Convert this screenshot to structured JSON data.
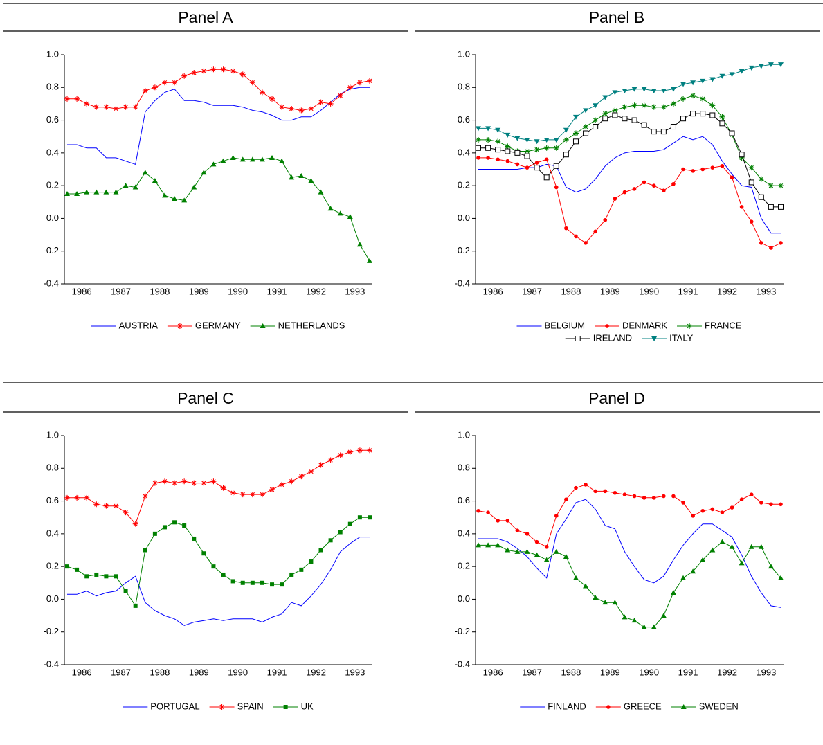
{
  "chart_data": [
    {
      "type": "line",
      "title": "Panel A",
      "legend": "bottom",
      "categories": [
        null,
        "1986",
        null,
        null,
        null,
        "1987",
        null,
        null,
        null,
        "1988",
        null,
        null,
        null,
        "1989",
        null,
        null,
        null,
        "1990",
        null,
        null,
        null,
        "1991",
        null,
        null,
        null,
        "1992",
        null,
        null,
        null,
        "1993",
        null,
        null
      ],
      "ylim": [
        -0.4,
        1.0
      ],
      "yticks": [
        -0.4,
        -0.2,
        {
          "value": 0,
          "label": "0.0"
        },
        0.2,
        0.4,
        0.6,
        0.8,
        {
          "value": 1,
          "label": "1.0"
        }
      ],
      "series": [
        {
          "name": "AUSTRIA",
          "color": "#0000ff",
          "marker": "none",
          "values": [
            0.45,
            0.45,
            0.43,
            0.43,
            0.37,
            0.37,
            0.35,
            0.33,
            0.65,
            0.72,
            0.77,
            0.79,
            0.72,
            0.72,
            0.71,
            0.69,
            0.69,
            0.69,
            0.68,
            0.66,
            0.65,
            0.63,
            0.6,
            0.6,
            0.62,
            0.62,
            0.66,
            0.71,
            0.76,
            0.79,
            0.8,
            0.8
          ]
        },
        {
          "name": "GERMANY",
          "color": "#ff0000",
          "marker": "star",
          "values": [
            0.73,
            0.73,
            0.7,
            0.68,
            0.68,
            0.67,
            0.68,
            0.68,
            0.78,
            0.8,
            0.83,
            0.83,
            0.87,
            0.89,
            0.9,
            0.91,
            0.91,
            0.9,
            0.88,
            0.83,
            0.77,
            0.73,
            0.68,
            0.67,
            0.66,
            0.67,
            0.71,
            0.7,
            0.75,
            0.8,
            0.83,
            0.84
          ]
        },
        {
          "name": "NETHERLANDS",
          "color": "#008000",
          "marker": "triangle",
          "values": [
            0.15,
            0.15,
            0.16,
            0.16,
            0.16,
            0.16,
            0.2,
            0.19,
            0.28,
            0.23,
            0.14,
            0.12,
            0.11,
            0.19,
            0.28,
            0.33,
            0.35,
            0.37,
            0.36,
            0.36,
            0.36,
            0.37,
            0.35,
            0.25,
            0.26,
            0.23,
            0.16,
            0.06,
            0.03,
            0.01,
            -0.16,
            -0.26
          ]
        }
      ]
    },
    {
      "type": "line",
      "title": "Panel B",
      "legend": "bottom",
      "categories": [
        null,
        "1986",
        null,
        null,
        null,
        "1987",
        null,
        null,
        null,
        "1988",
        null,
        null,
        null,
        "1989",
        null,
        null,
        null,
        "1990",
        null,
        null,
        null,
        "1991",
        null,
        null,
        null,
        "1992",
        null,
        null,
        null,
        "1993",
        null,
        null
      ],
      "ylim": [
        -0.4,
        1.0
      ],
      "yticks": [
        -0.4,
        -0.2,
        {
          "value": 0,
          "label": "0.0"
        },
        0.2,
        0.4,
        0.6,
        0.8,
        {
          "value": 1,
          "label": "1.0"
        }
      ],
      "series": [
        {
          "name": "BELGIUM",
          "color": "#0000ff",
          "marker": "none",
          "values": [
            0.3,
            0.3,
            0.3,
            0.3,
            0.3,
            0.31,
            0.31,
            0.33,
            0.32,
            0.19,
            0.16,
            0.18,
            0.24,
            0.32,
            0.37,
            0.4,
            0.41,
            0.41,
            0.41,
            0.42,
            0.46,
            0.5,
            0.48,
            0.5,
            0.45,
            0.35,
            0.27,
            0.2,
            0.19,
            0.0,
            -0.09,
            -0.09
          ]
        },
        {
          "name": "DENMARK",
          "color": "#ff0000",
          "marker": "dot",
          "values": [
            0.37,
            0.37,
            0.36,
            0.35,
            0.33,
            0.31,
            0.34,
            0.36,
            0.19,
            -0.06,
            -0.11,
            -0.15,
            -0.08,
            -0.01,
            0.12,
            0.16,
            0.18,
            0.22,
            0.2,
            0.17,
            0.21,
            0.3,
            0.29,
            0.3,
            0.31,
            0.32,
            0.25,
            0.07,
            -0.02,
            -0.15,
            -0.18,
            -0.15
          ]
        },
        {
          "name": "FRANCE",
          "color": "#008000",
          "marker": "star",
          "values": [
            0.48,
            0.48,
            0.47,
            0.44,
            0.41,
            0.41,
            0.42,
            0.43,
            0.43,
            0.48,
            0.52,
            0.56,
            0.6,
            0.64,
            0.66,
            0.68,
            0.69,
            0.69,
            0.68,
            0.68,
            0.7,
            0.73,
            0.75,
            0.73,
            0.69,
            0.62,
            0.51,
            0.37,
            0.31,
            0.24,
            0.2,
            0.2
          ]
        },
        {
          "name": "IRELAND",
          "color": "#000000",
          "marker": "opensquare",
          "values": [
            0.43,
            0.43,
            0.42,
            0.41,
            0.4,
            0.38,
            0.31,
            0.25,
            0.32,
            0.39,
            0.47,
            0.52,
            0.56,
            0.61,
            0.63,
            0.61,
            0.6,
            0.57,
            0.53,
            0.53,
            0.56,
            0.61,
            0.64,
            0.64,
            0.63,
            0.58,
            0.52,
            0.39,
            0.22,
            0.13,
            0.07,
            0.07
          ]
        },
        {
          "name": "ITALY",
          "color": "#008080",
          "marker": "invtriangle",
          "values": [
            0.55,
            0.55,
            0.54,
            0.51,
            0.49,
            0.48,
            0.47,
            0.48,
            0.48,
            0.54,
            0.62,
            0.66,
            0.69,
            0.74,
            0.77,
            0.78,
            0.79,
            0.79,
            0.78,
            0.78,
            0.79,
            0.82,
            0.83,
            0.84,
            0.85,
            0.87,
            0.88,
            0.9,
            0.92,
            0.93,
            0.94,
            0.94
          ]
        }
      ]
    },
    {
      "type": "line",
      "title": "Panel C",
      "legend": "bottom",
      "categories": [
        null,
        "1986",
        null,
        null,
        null,
        "1987",
        null,
        null,
        null,
        "1988",
        null,
        null,
        null,
        "1989",
        null,
        null,
        null,
        "1990",
        null,
        null,
        null,
        "1991",
        null,
        null,
        null,
        "1992",
        null,
        null,
        null,
        "1993",
        null,
        null
      ],
      "ylim": [
        -0.4,
        1.0
      ],
      "yticks": [
        -0.4,
        -0.2,
        {
          "value": 0,
          "label": "0.0"
        },
        0.2,
        0.4,
        0.6,
        0.8,
        {
          "value": 1,
          "label": "1.0"
        }
      ],
      "series": [
        {
          "name": "PORTUGAL",
          "color": "#0000ff",
          "marker": "none",
          "values": [
            0.03,
            0.03,
            0.05,
            0.02,
            0.04,
            0.05,
            0.1,
            0.14,
            -0.02,
            -0.07,
            -0.1,
            -0.12,
            -0.16,
            -0.14,
            -0.13,
            -0.12,
            -0.13,
            -0.12,
            -0.12,
            -0.12,
            -0.14,
            -0.11,
            -0.09,
            -0.02,
            -0.04,
            0.02,
            0.09,
            0.18,
            0.29,
            0.34,
            0.38,
            0.38
          ]
        },
        {
          "name": "SPAIN",
          "color": "#ff0000",
          "marker": "star",
          "values": [
            0.62,
            0.62,
            0.62,
            0.58,
            0.57,
            0.57,
            0.53,
            0.46,
            0.63,
            0.71,
            0.72,
            0.71,
            0.72,
            0.71,
            0.71,
            0.72,
            0.68,
            0.65,
            0.64,
            0.64,
            0.64,
            0.67,
            0.7,
            0.72,
            0.75,
            0.78,
            0.82,
            0.85,
            0.88,
            0.9,
            0.91,
            0.91
          ]
        },
        {
          "name": "UK",
          "color": "#008000",
          "marker": "square",
          "values": [
            0.2,
            0.18,
            0.14,
            0.15,
            0.14,
            0.14,
            0.05,
            -0.04,
            0.3,
            0.4,
            0.44,
            0.47,
            0.45,
            0.37,
            0.28,
            0.2,
            0.15,
            0.11,
            0.1,
            0.1,
            0.1,
            0.09,
            0.09,
            0.15,
            0.18,
            0.23,
            0.3,
            0.36,
            0.41,
            0.46,
            0.5,
            0.5
          ]
        }
      ]
    },
    {
      "type": "line",
      "title": "Panel D",
      "legend": "bottom",
      "categories": [
        null,
        "1986",
        null,
        null,
        null,
        "1987",
        null,
        null,
        null,
        "1988",
        null,
        null,
        null,
        "1989",
        null,
        null,
        null,
        "1990",
        null,
        null,
        null,
        "1991",
        null,
        null,
        null,
        "1992",
        null,
        null,
        null,
        "1993",
        null,
        null
      ],
      "ylim": [
        -0.4,
        1.0
      ],
      "yticks": [
        -0.4,
        -0.2,
        {
          "value": 0,
          "label": "0.0"
        },
        0.2,
        0.4,
        0.6,
        0.8,
        {
          "value": 1,
          "label": "1.0"
        }
      ],
      "series": [
        {
          "name": "FINLAND",
          "color": "#0000ff",
          "marker": "none",
          "values": [
            0.37,
            0.37,
            0.37,
            0.35,
            0.31,
            0.26,
            0.19,
            0.13,
            0.4,
            0.49,
            0.59,
            0.61,
            0.55,
            0.45,
            0.43,
            0.29,
            0.2,
            0.12,
            0.1,
            0.14,
            0.24,
            0.33,
            0.4,
            0.46,
            0.46,
            0.42,
            0.38,
            0.27,
            0.14,
            0.04,
            -0.04,
            -0.05
          ]
        },
        {
          "name": "GREECE",
          "color": "#ff0000",
          "marker": "dot",
          "values": [
            0.54,
            0.53,
            0.48,
            0.48,
            0.42,
            0.4,
            0.35,
            0.32,
            0.51,
            0.61,
            0.68,
            0.7,
            0.66,
            0.66,
            0.65,
            0.64,
            0.63,
            0.62,
            0.62,
            0.63,
            0.63,
            0.59,
            0.51,
            0.54,
            0.55,
            0.53,
            0.56,
            0.61,
            0.64,
            0.59,
            0.58,
            0.58
          ]
        },
        {
          "name": "SWEDEN",
          "color": "#008000",
          "marker": "triangle",
          "values": [
            0.33,
            0.33,
            0.33,
            0.3,
            0.29,
            0.29,
            0.27,
            0.24,
            0.29,
            0.26,
            0.13,
            0.08,
            0.01,
            -0.02,
            -0.02,
            -0.11,
            -0.13,
            -0.17,
            -0.17,
            -0.1,
            0.04,
            0.13,
            0.17,
            0.24,
            0.3,
            0.35,
            0.32,
            0.22,
            0.32,
            0.32,
            0.2,
            0.13
          ]
        }
      ]
    }
  ]
}
